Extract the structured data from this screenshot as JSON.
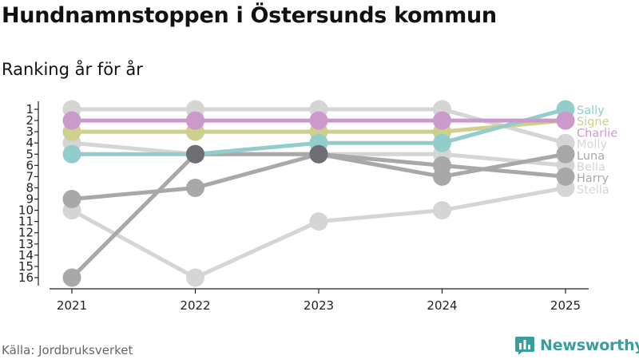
{
  "title": "Hundnamnstoppen i Östersunds kommun",
  "subtitle": "Ranking år för år",
  "source": "Källa: Jordbruksverket",
  "brand": "Newsworthy",
  "chart_data": {
    "type": "line",
    "x": [
      "2021",
      "2022",
      "2023",
      "2024",
      "2025"
    ],
    "y_ticks": [
      "1",
      "2",
      "3",
      "4",
      "5",
      "6",
      "7",
      "8",
      "9",
      "10",
      "11",
      "12",
      "13",
      "14",
      "15",
      "16"
    ],
    "ylim": [
      1,
      16
    ],
    "y_inverted": true,
    "grid": false,
    "series": [
      {
        "name": "Stella",
        "color": "#d5d5d5",
        "values": [
          10,
          16,
          11,
          10,
          8
        ]
      },
      {
        "name": "Bella",
        "color": "#d5d5d5",
        "values": [
          4,
          5,
          5,
          5,
          6
        ]
      },
      {
        "name": "Molly",
        "color": "#d5d5d5",
        "values": [
          1,
          1,
          1,
          1,
          4
        ]
      },
      {
        "name": "Harry",
        "color": "#a8a8a8",
        "values": [
          9,
          8,
          5,
          6,
          7
        ]
      },
      {
        "name": "Luna",
        "color": "#a8a8a8",
        "values": [
          16,
          5,
          5,
          7,
          5
        ]
      },
      {
        "name": "Signe",
        "color": "#cfcf8e",
        "values": [
          3,
          3,
          3,
          3,
          2
        ]
      },
      {
        "name": "Sally",
        "color": "#92cccc",
        "values": [
          5,
          5,
          4,
          4,
          1
        ]
      },
      {
        "name": "Charlie",
        "color": "#cc99cc",
        "values": [
          2,
          2,
          2,
          2,
          2
        ]
      }
    ],
    "highlight_points": [
      {
        "x": "2022",
        "y": 5,
        "color": "#6e6e75"
      },
      {
        "x": "2023",
        "y": 5,
        "color": "#6e6e75"
      }
    ]
  }
}
